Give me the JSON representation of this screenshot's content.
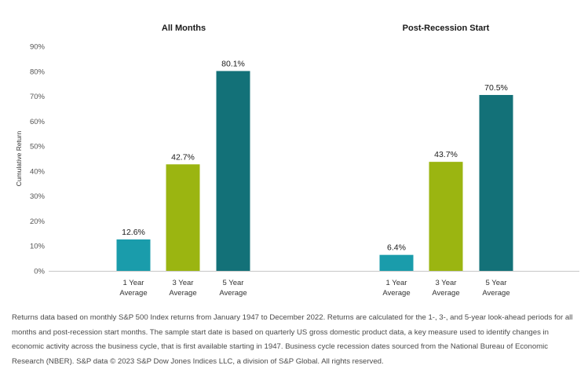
{
  "chart_data": {
    "type": "bar",
    "ylabel": "Cumulative Return",
    "ylim": [
      0,
      90
    ],
    "yticks": [
      "0%",
      "10%",
      "20%",
      "30%",
      "40%",
      "50%",
      "60%",
      "70%",
      "80%",
      "90%"
    ],
    "categories": [
      [
        "1 Year",
        "Average"
      ],
      [
        "3 Year",
        "Average"
      ],
      [
        "5 Year",
        "Average"
      ]
    ],
    "colors": [
      "#1a9cab",
      "#9bb511",
      "#137178"
    ],
    "panels": [
      {
        "title": "All Months",
        "values": [
          12.6,
          42.7,
          80.1
        ],
        "labels": [
          "12.6%",
          "42.7%",
          "80.1%"
        ]
      },
      {
        "title": "Post-Recession Start",
        "values": [
          6.4,
          43.7,
          70.5
        ],
        "labels": [
          "6.4%",
          "43.7%",
          "70.5%"
        ]
      }
    ]
  },
  "footnote": "Returns data based on monthly S&P 500 Index returns from January 1947 to December 2022. Returns are calculated for the 1-, 3-, and 5-year look-ahead periods for all months and post-recession start months. The sample start date is based on quarterly US gross domestic product data, a key measure used to identify changes in economic activity across the business cycle, that is first available starting in 1947. Business cycle recession dates sourced from the National Bureau of Economic Research (NBER). S&P data © 2023 S&P Dow Jones Indices LLC, a division of S&P Global. All rights reserved."
}
